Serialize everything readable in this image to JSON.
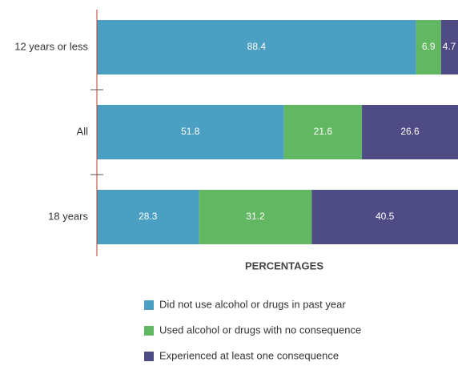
{
  "chart_data": {
    "type": "stacked_bar_horizontal",
    "categories": [
      "12 years or less",
      "All",
      "18 years"
    ],
    "series": [
      {
        "name": "Did not use alcohol or drugs in past year",
        "color": "#4a9fc2",
        "values": [
          88.4,
          51.8,
          28.3
        ]
      },
      {
        "name": "Used alcohol or drugs with no consequence",
        "color": "#62b862",
        "values": [
          6.9,
          21.6,
          31.2
        ]
      },
      {
        "name": "Experienced at least one consequence",
        "color": "#4f4c85",
        "values": [
          4.7,
          26.6,
          40.5
        ]
      }
    ],
    "xlabel": "PERCENTAGES",
    "xlim": [
      0,
      100
    ],
    "legend": "bottom"
  }
}
